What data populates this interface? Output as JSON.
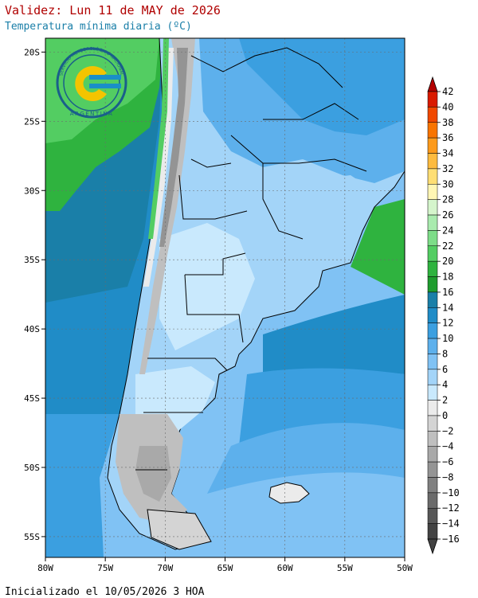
{
  "header": {
    "title": "Validez: Lun 11 de MAY de 2026",
    "subtitle": "Temperatura mínima diaria (ºC)"
  },
  "footer": {
    "init_text": "Inicializado el 10/05/2026 3 HOA"
  },
  "logo": {
    "ring_text": "SERVICIO METEOROLÓGICO NACIONAL",
    "bottom_text": "ARGENTINA",
    "colors": {
      "ring": "#1a5f8a",
      "sun": "#f4c400",
      "bars": "#1a8fc8"
    }
  },
  "map": {
    "lat_range": [
      -56.5,
      -19
    ],
    "lon_range": [
      -80,
      -50
    ],
    "lat_ticks": [
      {
        "label": "20S",
        "lat": -20
      },
      {
        "label": "25S",
        "lat": -25
      },
      {
        "label": "30S",
        "lat": -30
      },
      {
        "label": "35S",
        "lat": -35
      },
      {
        "label": "40S",
        "lat": -40
      },
      {
        "label": "45S",
        "lat": -45
      },
      {
        "label": "50S",
        "lat": -50
      },
      {
        "label": "55S",
        "lat": -55
      }
    ],
    "lon_ticks": [
      {
        "label": "80W",
        "lon": -80
      },
      {
        "label": "75W",
        "lon": -75
      },
      {
        "label": "70W",
        "lon": -70
      },
      {
        "label": "65W",
        "lon": -65
      },
      {
        "label": "60W",
        "lon": -60
      },
      {
        "label": "55W",
        "lon": -55
      },
      {
        "label": "50W",
        "lon": -50
      }
    ]
  },
  "colorbar": {
    "levels": [
      {
        "label": "42",
        "color": "#b30000"
      },
      {
        "label": "40",
        "color": "#d91a00"
      },
      {
        "label": "38",
        "color": "#f04800"
      },
      {
        "label": "36",
        "color": "#f87400"
      },
      {
        "label": "34",
        "color": "#fc9a1c"
      },
      {
        "label": "32",
        "color": "#fdbb3f"
      },
      {
        "label": "30",
        "color": "#fede74"
      },
      {
        "label": "28",
        "color": "#fff6b4"
      },
      {
        "label": "26",
        "color": "#d5f5cc"
      },
      {
        "label": "24",
        "color": "#a9ebae"
      },
      {
        "label": "22",
        "color": "#7ddd88"
      },
      {
        "label": "20",
        "color": "#53cd62"
      },
      {
        "label": "18",
        "color": "#2fb33f"
      },
      {
        "label": "16",
        "color": "#1f9c2e"
      },
      {
        "label": "14",
        "color": "#1a7fa8"
      },
      {
        "label": "12",
        "color": "#208cc7"
      },
      {
        "label": "10",
        "color": "#3b9fe0"
      },
      {
        "label": "8",
        "color": "#5db0ec"
      },
      {
        "label": "6",
        "color": "#80c2f4"
      },
      {
        "label": "4",
        "color": "#a3d4f8"
      },
      {
        "label": "2",
        "color": "#c9e9fd"
      },
      {
        "label": "0",
        "color": "#ebebeb"
      },
      {
        "label": "−2",
        "color": "#d4d4d4"
      },
      {
        "label": "−4",
        "color": "#bfbfbf"
      },
      {
        "label": "−6",
        "color": "#a9a9a9"
      },
      {
        "label": "−8",
        "color": "#949494"
      },
      {
        "label": "−10",
        "color": "#808080"
      },
      {
        "label": "−12",
        "color": "#6b6b6b"
      },
      {
        "label": "−14",
        "color": "#575757"
      },
      {
        "label": "−16",
        "color": "#434343"
      }
    ],
    "top_arrow_color": "#b30000",
    "bottom_arrow_color": "#434343"
  }
}
